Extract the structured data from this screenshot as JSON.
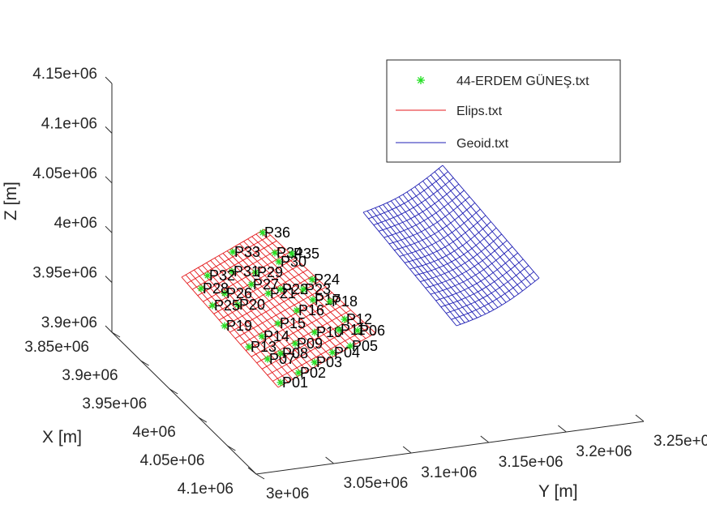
{
  "colors": {
    "points": "#22e022",
    "ellipsoid": "#e41a1c",
    "geoid": "#1f1fb4",
    "axis": "#262626"
  },
  "legend": {
    "placement": "top-right",
    "entries": [
      {
        "label": "44-ERDEM GÜNEŞ.txt",
        "style": "marker"
      },
      {
        "label": "Elips.txt",
        "style": "line"
      },
      {
        "label": "Geoid.txt",
        "style": "line"
      }
    ]
  },
  "chart_data": {
    "type": "scatter",
    "title": "",
    "xlabel": "X [m]",
    "ylabel": "Y [m]",
    "zlabel": "Z [m]",
    "x_ticks": [
      "3.85e+06",
      "3.9e+06",
      "3.95e+06",
      "4e+06",
      "4.05e+06",
      "4.1e+06"
    ],
    "y_ticks": [
      "3e+06",
      "3.05e+06",
      "3.1e+06",
      "3.15e+06",
      "3.2e+06",
      "3.25e+06"
    ],
    "z_ticks": [
      "3.9e+06",
      "3.95e+06",
      "4e+06",
      "4.05e+06",
      "4.1e+06",
      "4.15e+06"
    ],
    "grid": false,
    "points": [
      "P01",
      "P02",
      "P03",
      "P04",
      "P05",
      "P06",
      "P07",
      "P08",
      "P09",
      "P10",
      "P11",
      "P12",
      "P13",
      "P14",
      "P15",
      "P16",
      "P17",
      "P18",
      "P19",
      "P20",
      "P21",
      "P22",
      "P23",
      "P24",
      "P25",
      "P26",
      "P27",
      "P28",
      "P29",
      "P30",
      "P31",
      "P32",
      "P33",
      "P34",
      "P35",
      "P36"
    ],
    "surfaces": [
      "Elips.txt",
      "Geoid.txt"
    ]
  }
}
